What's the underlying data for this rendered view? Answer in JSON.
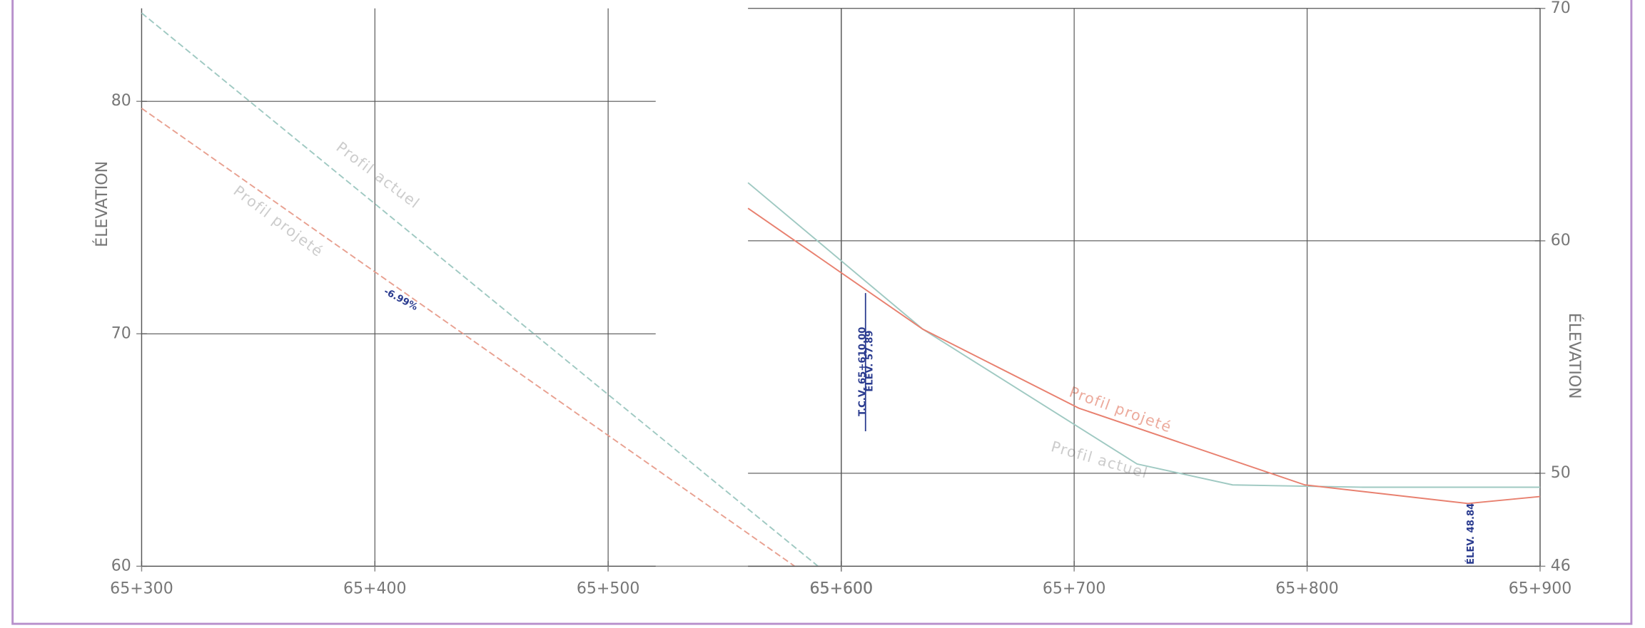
{
  "chart_data": [
    {
      "type": "line",
      "ylabel": "ÉLEVATION",
      "y_axis_position": "left",
      "xlim": [
        65300,
        65600
      ],
      "ylim": [
        60,
        84
      ],
      "xticks": [
        {
          "value": 65300,
          "label": "65+300"
        },
        {
          "value": 65400,
          "label": "65+400"
        },
        {
          "value": 65500,
          "label": "65+500"
        },
        {
          "value": 65600,
          "label": "65+600"
        }
      ],
      "yticks": [
        60,
        70,
        80
      ],
      "grid": true,
      "series": [
        {
          "name": "Profil actuel",
          "color": "#9fc9c2",
          "x": [
            65300,
            65590
          ],
          "values": [
            83.8,
            60
          ]
        },
        {
          "name": "Profil projeté",
          "color": "#e8a090",
          "x": [
            65300,
            65580
          ],
          "values": [
            79.7,
            60
          ]
        }
      ],
      "annotations": [
        "-6.99%"
      ]
    },
    {
      "type": "line",
      "ylabel": "ÉLEVATION",
      "y_axis_position": "right",
      "xlim": [
        65560,
        65900
      ],
      "ylim": [
        46,
        70
      ],
      "xticks": [
        {
          "value": 65600,
          "label": "65+600"
        },
        {
          "value": 65700,
          "label": "65+700"
        },
        {
          "value": 65800,
          "label": "65+800"
        },
        {
          "value": 65900,
          "label": "65+900"
        }
      ],
      "yticks": [
        46,
        50,
        60,
        70
      ],
      "grid": true,
      "series": [
        {
          "name": "Profil actuel",
          "color": "#9fc9c2",
          "x": [
            65560,
            65635,
            65727,
            65768,
            65824,
            65900
          ],
          "values": [
            62.5,
            56.2,
            50.4,
            49.5,
            49.4,
            49.4
          ]
        },
        {
          "name": "Profil projeté",
          "color": "#e8806f",
          "x": [
            65560,
            65635,
            65702,
            65799,
            65869,
            65900
          ],
          "values": [
            61.4,
            56.2,
            52.8,
            49.5,
            48.7,
            49.0
          ]
        }
      ],
      "annotations": [
        "T.C.V. 65+610.00",
        "ÉLEV. 57.89",
        "ÉLEV. 48.84"
      ]
    }
  ]
}
